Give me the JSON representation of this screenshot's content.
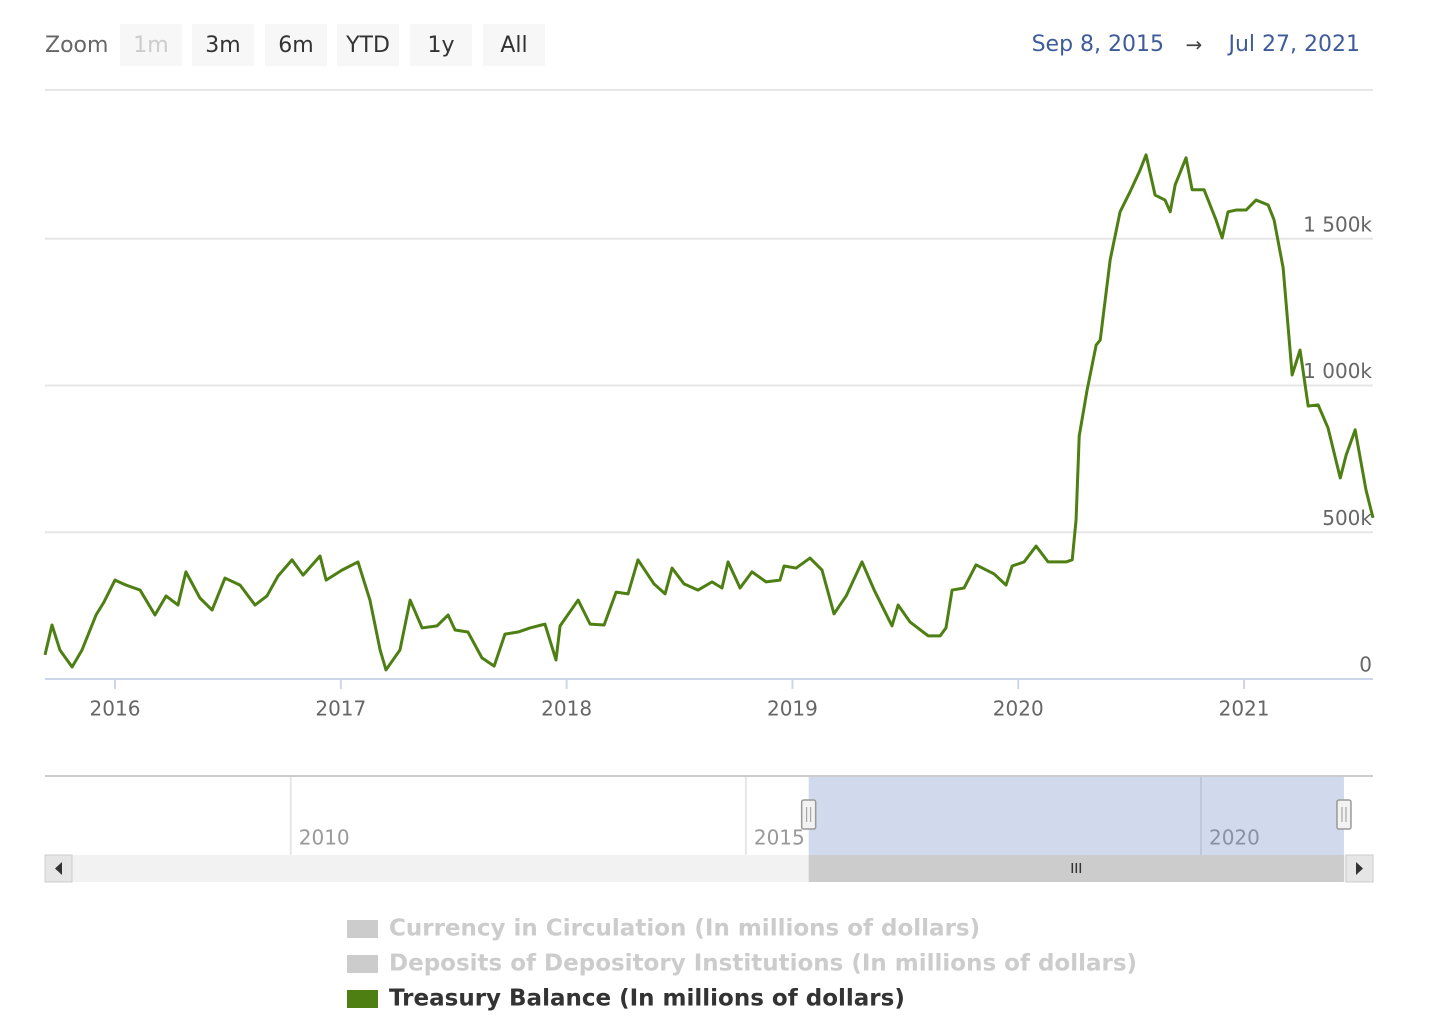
{
  "chart_data": {
    "type": "line",
    "zoom_label": "Zoom",
    "range_buttons": [
      {
        "label": "1m",
        "disabled": true
      },
      {
        "label": "3m",
        "disabled": false
      },
      {
        "label": "6m",
        "disabled": false
      },
      {
        "label": "YTD",
        "disabled": false
      },
      {
        "label": "1y",
        "disabled": false
      },
      {
        "label": "All",
        "disabled": false
      }
    ],
    "date_from": "Sep 8, 2015",
    "date_separator": "→",
    "date_to": "Jul 27, 2021",
    "xlim": [
      2015.69,
      2021.571
    ],
    "xticks": [
      2016,
      2017,
      2018,
      2019,
      2020,
      2021
    ],
    "ylim": [
      0,
      2007000
    ],
    "yticks": [
      0,
      {
        "value": 500000,
        "label": "500k"
      },
      {
        "value": 1000000,
        "label": "1 000k"
      },
      {
        "value": 1500000,
        "label": "1 500k"
      }
    ],
    "grid": true,
    "x": [
      2015.69,
      2015.721,
      2015.756,
      2015.81,
      2015.854,
      2015.916,
      2015.951,
      2016.0,
      2016.049,
      2016.111,
      2016.177,
      2016.226,
      2016.279,
      2016.314,
      2016.376,
      2016.43,
      2016.487,
      2016.554,
      2016.62,
      2016.673,
      2016.722,
      2016.784,
      2016.833,
      2016.908,
      2016.935,
      2017.005,
      2017.076,
      2017.129,
      2017.174,
      2017.2,
      2017.262,
      2017.307,
      2017.36,
      2017.426,
      2017.475,
      2017.506,
      2017.563,
      2017.625,
      2017.679,
      2017.727,
      2017.785,
      2017.838,
      2017.904,
      2017.953,
      2017.971,
      2018.051,
      2018.104,
      2018.166,
      2018.219,
      2018.272,
      2018.316,
      2018.387,
      2018.436,
      2018.467,
      2018.52,
      2018.582,
      2018.644,
      2018.688,
      2018.715,
      2018.768,
      2018.821,
      2018.883,
      2018.945,
      2018.963,
      2019.016,
      2019.078,
      2019.131,
      2019.184,
      2019.238,
      2019.308,
      2019.362,
      2019.441,
      2019.468,
      2019.521,
      2019.601,
      2019.654,
      2019.68,
      2019.707,
      2019.76,
      2019.813,
      2019.893,
      2019.946,
      2019.973,
      2020.026,
      2020.079,
      2020.132,
      2020.212,
      2020.239,
      2020.256,
      2020.27,
      2020.305,
      2020.345,
      2020.363,
      2020.407,
      2020.451,
      2020.495,
      2020.54,
      2020.566,
      2020.606,
      2020.65,
      2020.673,
      2020.695,
      2020.743,
      2020.77,
      2020.823,
      2020.876,
      2020.903,
      2020.929,
      2020.965,
      2021.009,
      2021.053,
      2021.107,
      2021.133,
      2021.173,
      2021.213,
      2021.248,
      2021.284,
      2021.328,
      2021.372,
      2021.426,
      2021.452,
      2021.492,
      2021.54,
      2021.571
    ],
    "series": [
      {
        "name": "Currency in Circulation (In millions of dollars)",
        "color": "#cccccc",
        "visible": false
      },
      {
        "name": "Deposits of Depository Institutions (In millions of dollars)",
        "color": "#cccccc",
        "visible": false
      },
      {
        "name": "Treasury Balance (In millions of dollars)",
        "color": "#4d7f12",
        "visible": true,
        "values": [
          82000,
          184000,
          99000,
          41000,
          99000,
          218000,
          262000,
          337000,
          320000,
          303000,
          218000,
          283000,
          252000,
          365000,
          276000,
          235000,
          344000,
          320000,
          252000,
          283000,
          351000,
          406000,
          354000,
          419000,
          337000,
          371000,
          399000,
          269000,
          99000,
          31000,
          99000,
          269000,
          174000,
          181000,
          218000,
          167000,
          160000,
          72000,
          44000,
          153000,
          160000,
          174000,
          187000,
          65000,
          181000,
          269000,
          187000,
          184000,
          296000,
          290000,
          406000,
          324000,
          290000,
          378000,
          324000,
          303000,
          331000,
          310000,
          399000,
          310000,
          365000,
          331000,
          337000,
          385000,
          378000,
          412000,
          371000,
          222000,
          283000,
          399000,
          303000,
          181000,
          252000,
          194000,
          147000,
          147000,
          174000,
          303000,
          310000,
          389000,
          358000,
          320000,
          385000,
          399000,
          453000,
          399000,
          399000,
          406000,
          542000,
          828000,
          985000,
          1138000,
          1155000,
          1428000,
          1592000,
          1660000,
          1735000,
          1786000,
          1649000,
          1632000,
          1592000,
          1684000,
          1776000,
          1667000,
          1667000,
          1564000,
          1503000,
          1592000,
          1598000,
          1598000,
          1632000,
          1615000,
          1564000,
          1401000,
          1036000,
          1121000,
          930000,
          934000,
          855000,
          685000,
          763000,
          849000,
          644000,
          549000
        ]
      }
    ],
    "navigator": {
      "xlim": [
        2007.3,
        2021.89
      ],
      "xticks": [
        2010,
        2015,
        2020
      ]
    }
  }
}
